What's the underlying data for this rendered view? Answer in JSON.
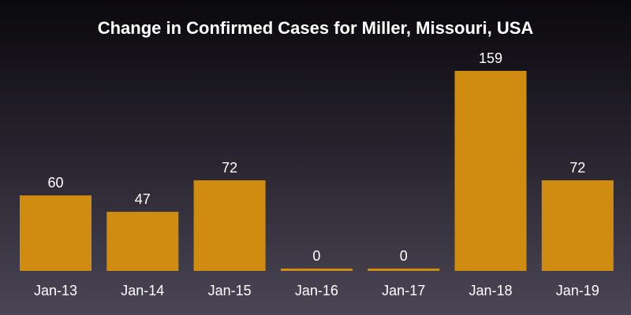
{
  "chart_data": {
    "type": "bar",
    "title": "Change in Confirmed Cases for Miller, Missouri, USA",
    "xlabel": "",
    "ylabel": "",
    "categories": [
      "Jan-13",
      "Jan-14",
      "Jan-15",
      "Jan-16",
      "Jan-17",
      "Jan-18",
      "Jan-19"
    ],
    "values": [
      60,
      47,
      72,
      0,
      0,
      159,
      72
    ],
    "ylim": [
      0,
      159
    ],
    "bar_color": "#d08c10",
    "grid": false,
    "legend": "none"
  }
}
